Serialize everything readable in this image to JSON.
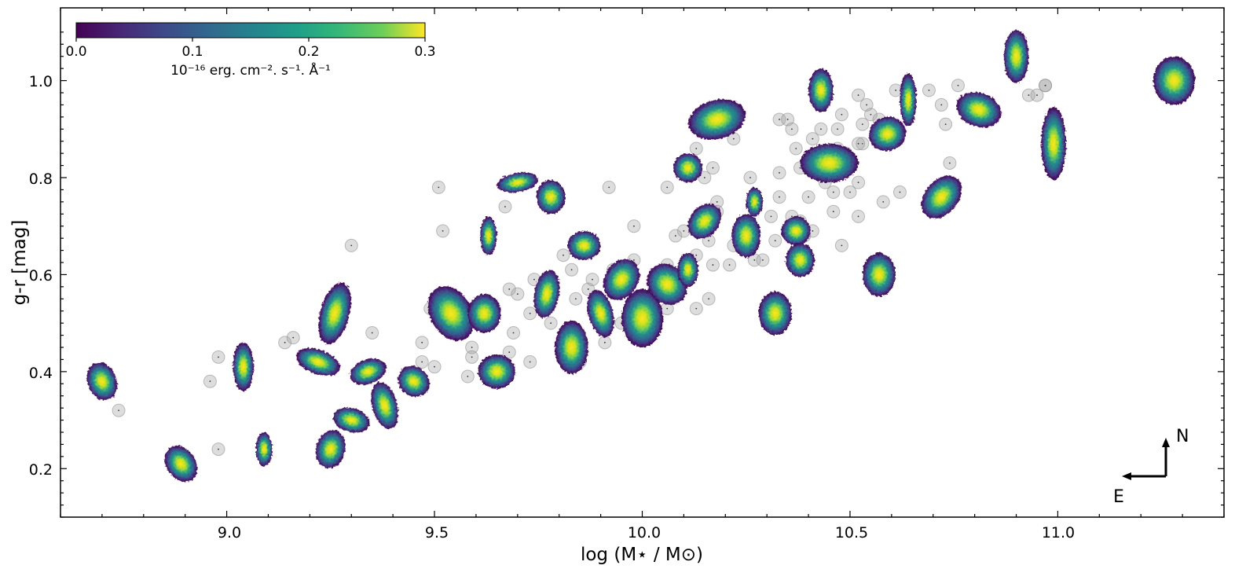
{
  "chart_data": {
    "type": "scatter",
    "xlabel": "log (M⋆ / M⊙)",
    "ylabel": "g-r [mag]",
    "xlim": [
      8.6,
      11.4
    ],
    "ylim": [
      0.1,
      1.15
    ],
    "x_ticks": [
      "9.0",
      "9.5",
      "10.0",
      "10.5",
      "11.0"
    ],
    "y_ticks": [
      "0.2",
      "0.4",
      "0.6",
      "0.8",
      "1.0"
    ],
    "grid": false,
    "colorbar": {
      "colormap": "viridis",
      "range": [
        0.0,
        0.3
      ],
      "ticks": [
        "0.0",
        "0.1",
        "0.2",
        "0.3"
      ],
      "label": "10⁻¹⁶ erg. cm⁻². s⁻¹. Å⁻¹",
      "placement": "top-left"
    },
    "compass": {
      "north": "N",
      "east": "E",
      "placement": "bottom-right"
    },
    "series": [
      {
        "marker": "galaxy-map",
        "points": [
          {
            "x": 8.7,
            "y": 0.38,
            "w": 0.07,
            "h": 0.08,
            "rot": -20
          },
          {
            "x": 8.89,
            "y": 0.21,
            "w": 0.07,
            "h": 0.08,
            "rot": -35
          },
          {
            "x": 9.04,
            "y": 0.41,
            "w": 0.05,
            "h": 0.1,
            "rot": 0
          },
          {
            "x": 9.09,
            "y": 0.24,
            "w": 0.04,
            "h": 0.07,
            "rot": 0
          },
          {
            "x": 9.22,
            "y": 0.42,
            "w": 0.11,
            "h": 0.05,
            "rot": 20
          },
          {
            "x": 9.26,
            "y": 0.52,
            "w": 0.07,
            "h": 0.13,
            "rot": 15
          },
          {
            "x": 9.25,
            "y": 0.24,
            "w": 0.07,
            "h": 0.08,
            "rot": 15
          },
          {
            "x": 9.3,
            "y": 0.3,
            "w": 0.09,
            "h": 0.05,
            "rot": 15
          },
          {
            "x": 9.34,
            "y": 0.4,
            "w": 0.09,
            "h": 0.05,
            "rot": -20
          },
          {
            "x": 9.38,
            "y": 0.33,
            "w": 0.06,
            "h": 0.1,
            "rot": -15
          },
          {
            "x": 9.45,
            "y": 0.38,
            "w": 0.08,
            "h": 0.06,
            "rot": 40
          },
          {
            "x": 9.54,
            "y": 0.52,
            "w": 0.1,
            "h": 0.12,
            "rot": -30
          },
          {
            "x": 9.62,
            "y": 0.52,
            "w": 0.08,
            "h": 0.08,
            "rot": 0
          },
          {
            "x": 9.63,
            "y": 0.68,
            "w": 0.04,
            "h": 0.08,
            "rot": 0
          },
          {
            "x": 9.65,
            "y": 0.4,
            "w": 0.09,
            "h": 0.07,
            "rot": 0
          },
          {
            "x": 9.7,
            "y": 0.79,
            "w": 0.1,
            "h": 0.04,
            "rot": -10
          },
          {
            "x": 9.77,
            "y": 0.56,
            "w": 0.06,
            "h": 0.1,
            "rot": 10
          },
          {
            "x": 9.78,
            "y": 0.76,
            "w": 0.07,
            "h": 0.07,
            "rot": 0
          },
          {
            "x": 9.83,
            "y": 0.45,
            "w": 0.08,
            "h": 0.11,
            "rot": 0
          },
          {
            "x": 9.86,
            "y": 0.66,
            "w": 0.08,
            "h": 0.06,
            "rot": 0
          },
          {
            "x": 9.9,
            "y": 0.52,
            "w": 0.06,
            "h": 0.1,
            "rot": -15
          },
          {
            "x": 9.95,
            "y": 0.59,
            "w": 0.08,
            "h": 0.09,
            "rot": 30
          },
          {
            "x": 10.0,
            "y": 0.51,
            "w": 0.1,
            "h": 0.12,
            "rot": 0
          },
          {
            "x": 10.06,
            "y": 0.58,
            "w": 0.09,
            "h": 0.09,
            "rot": -40
          },
          {
            "x": 10.11,
            "y": 0.61,
            "w": 0.05,
            "h": 0.07,
            "rot": 0
          },
          {
            "x": 10.11,
            "y": 0.82,
            "w": 0.07,
            "h": 0.06,
            "rot": 0
          },
          {
            "x": 10.15,
            "y": 0.71,
            "w": 0.07,
            "h": 0.08,
            "rot": 40
          },
          {
            "x": 10.18,
            "y": 0.92,
            "w": 0.14,
            "h": 0.08,
            "rot": -15
          },
          {
            "x": 10.25,
            "y": 0.68,
            "w": 0.07,
            "h": 0.09,
            "rot": 0
          },
          {
            "x": 10.27,
            "y": 0.75,
            "w": 0.04,
            "h": 0.06,
            "rot": 0
          },
          {
            "x": 10.32,
            "y": 0.52,
            "w": 0.08,
            "h": 0.09,
            "rot": 0
          },
          {
            "x": 10.37,
            "y": 0.69,
            "w": 0.07,
            "h": 0.06,
            "rot": -30
          },
          {
            "x": 10.38,
            "y": 0.63,
            "w": 0.07,
            "h": 0.07,
            "rot": 0
          },
          {
            "x": 10.43,
            "y": 0.98,
            "w": 0.06,
            "h": 0.09,
            "rot": 0
          },
          {
            "x": 10.45,
            "y": 0.83,
            "w": 0.14,
            "h": 0.08,
            "rot": 0
          },
          {
            "x": 10.57,
            "y": 0.6,
            "w": 0.08,
            "h": 0.09,
            "rot": 0
          },
          {
            "x": 10.59,
            "y": 0.89,
            "w": 0.09,
            "h": 0.07,
            "rot": -20
          },
          {
            "x": 10.64,
            "y": 0.96,
            "w": 0.04,
            "h": 0.11,
            "rot": 0
          },
          {
            "x": 10.72,
            "y": 0.76,
            "w": 0.08,
            "h": 0.1,
            "rot": 40
          },
          {
            "x": 10.81,
            "y": 0.94,
            "w": 0.11,
            "h": 0.07,
            "rot": 20
          },
          {
            "x": 10.9,
            "y": 1.05,
            "w": 0.06,
            "h": 0.11,
            "rot": 0
          },
          {
            "x": 10.99,
            "y": 0.87,
            "w": 0.06,
            "h": 0.15,
            "rot": 0
          },
          {
            "x": 11.28,
            "y": 1.0,
            "w": 0.1,
            "h": 0.1,
            "rot": 0
          }
        ]
      },
      {
        "marker": "gray-circle",
        "points": [
          [
            8.74,
            0.32
          ],
          [
            8.98,
            0.43
          ],
          [
            8.96,
            0.38
          ],
          [
            8.98,
            0.24
          ],
          [
            9.14,
            0.46
          ],
          [
            9.16,
            0.47
          ],
          [
            9.3,
            0.66
          ],
          [
            9.35,
            0.48
          ],
          [
            9.47,
            0.46
          ],
          [
            9.47,
            0.42
          ],
          [
            9.49,
            0.53
          ],
          [
            9.5,
            0.41
          ],
          [
            9.51,
            0.78
          ],
          [
            9.52,
            0.69
          ],
          [
            9.59,
            0.45
          ],
          [
            9.59,
            0.43
          ],
          [
            9.58,
            0.39
          ],
          [
            9.64,
            0.53
          ],
          [
            9.68,
            0.57
          ],
          [
            9.67,
            0.74
          ],
          [
            9.69,
            0.48
          ],
          [
            9.7,
            0.56
          ],
          [
            9.68,
            0.44
          ],
          [
            9.73,
            0.52
          ],
          [
            9.74,
            0.59
          ],
          [
            9.73,
            0.42
          ],
          [
            9.78,
            0.5
          ],
          [
            9.81,
            0.64
          ],
          [
            9.83,
            0.61
          ],
          [
            9.84,
            0.55
          ],
          [
            9.85,
            0.42
          ],
          [
            9.87,
            0.57
          ],
          [
            9.88,
            0.59
          ],
          [
            9.91,
            0.46
          ],
          [
            9.92,
            0.78
          ],
          [
            9.93,
            0.61
          ],
          [
            9.95,
            0.5
          ],
          [
            9.98,
            0.63
          ],
          [
            9.98,
            0.7
          ],
          [
            10.04,
            0.56
          ],
          [
            10.06,
            0.62
          ],
          [
            10.06,
            0.53
          ],
          [
            10.06,
            0.78
          ],
          [
            10.08,
            0.68
          ],
          [
            10.1,
            0.59
          ],
          [
            10.1,
            0.69
          ],
          [
            10.13,
            0.53
          ],
          [
            10.13,
            0.64
          ],
          [
            10.15,
            0.8
          ],
          [
            10.13,
            0.86
          ],
          [
            10.16,
            0.67
          ],
          [
            10.16,
            0.55
          ],
          [
            10.17,
            0.62
          ],
          [
            10.17,
            0.82
          ],
          [
            10.18,
            0.75
          ],
          [
            10.18,
            0.73
          ],
          [
            10.21,
            0.62
          ],
          [
            10.22,
            0.66
          ],
          [
            10.22,
            0.88
          ],
          [
            10.26,
            0.8
          ],
          [
            10.27,
            0.63
          ],
          [
            10.29,
            0.63
          ],
          [
            10.31,
            0.72
          ],
          [
            10.32,
            0.67
          ],
          [
            10.33,
            0.76
          ],
          [
            10.33,
            0.81
          ],
          [
            10.33,
            0.92
          ],
          [
            10.35,
            0.92
          ],
          [
            10.36,
            0.9
          ],
          [
            10.36,
            0.72
          ],
          [
            10.37,
            0.86
          ],
          [
            10.38,
            0.71
          ],
          [
            10.38,
            0.82
          ],
          [
            10.39,
            0.68
          ],
          [
            10.4,
            0.76
          ],
          [
            10.41,
            0.69
          ],
          [
            10.41,
            0.88
          ],
          [
            10.43,
            0.9
          ],
          [
            10.44,
            0.79
          ],
          [
            10.46,
            0.77
          ],
          [
            10.46,
            0.73
          ],
          [
            10.47,
            0.9
          ],
          [
            10.47,
            0.86
          ],
          [
            10.48,
            0.66
          ],
          [
            10.48,
            0.93
          ],
          [
            10.49,
            0.85
          ],
          [
            10.5,
            0.77
          ],
          [
            10.52,
            0.72
          ],
          [
            10.52,
            0.79
          ],
          [
            10.52,
            0.97
          ],
          [
            10.53,
            0.87
          ],
          [
            10.53,
            0.91
          ],
          [
            10.54,
            0.95
          ],
          [
            10.55,
            0.93
          ],
          [
            10.58,
            0.75
          ],
          [
            10.61,
            0.98
          ],
          [
            10.62,
            0.77
          ],
          [
            10.69,
            0.98
          ],
          [
            10.72,
            0.95
          ],
          [
            10.73,
            0.91
          ],
          [
            10.74,
            0.83
          ],
          [
            10.76,
            0.99
          ],
          [
            10.93,
            0.97
          ],
          [
            10.95,
            0.97
          ],
          [
            10.97,
            0.99
          ],
          [
            10.97,
            0.99
          ],
          [
            10.57,
            0.92
          ],
          [
            10.52,
            0.87
          ]
        ]
      }
    ]
  }
}
